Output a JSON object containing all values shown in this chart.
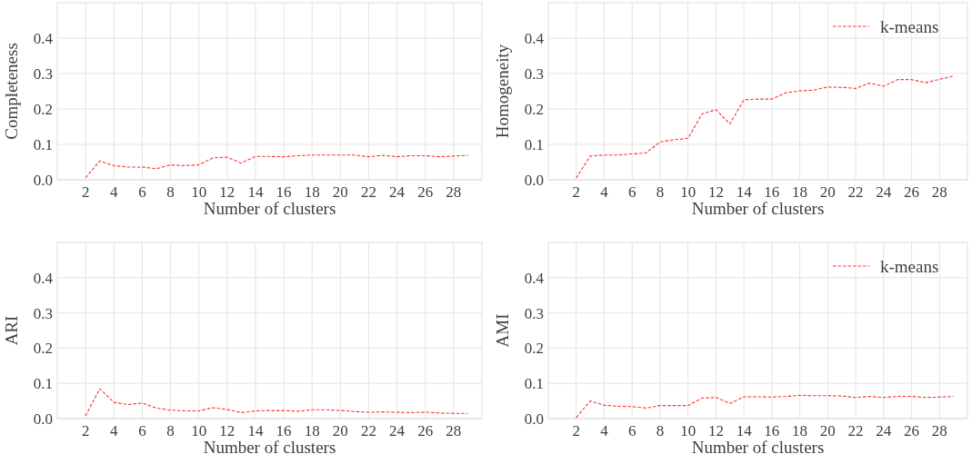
{
  "chart_data": [
    {
      "type": "line",
      "xlabel": "Number of clusters",
      "ylabel": "Completeness",
      "x": [
        2,
        3,
        4,
        5,
        6,
        7,
        8,
        9,
        10,
        11,
        12,
        13,
        14,
        15,
        16,
        17,
        18,
        19,
        20,
        21,
        22,
        23,
        24,
        25,
        26,
        27,
        28,
        29
      ],
      "xlim": [
        0,
        30
      ],
      "xticks": [
        2,
        4,
        6,
        8,
        10,
        12,
        14,
        16,
        18,
        20,
        22,
        24,
        26,
        28
      ],
      "ylim": [
        0,
        0.5
      ],
      "yticks": [
        {
          "value": 0,
          "label": "0.0"
        },
        {
          "value": 0.1,
          "label": "0.1"
        },
        {
          "value": 0.2,
          "label": "0.2"
        },
        {
          "value": 0.3,
          "label": "0.3"
        },
        {
          "value": 0.4,
          "label": "0.4"
        }
      ],
      "grid": true,
      "legend": false,
      "line_style": "dashed",
      "series": [
        {
          "color": "#ff3030",
          "values": [
            0.006,
            0.053,
            0.04,
            0.036,
            0.036,
            0.031,
            0.042,
            0.04,
            0.042,
            0.062,
            0.064,
            0.047,
            0.066,
            0.066,
            0.065,
            0.068,
            0.07,
            0.07,
            0.07,
            0.07,
            0.065,
            0.069,
            0.065,
            0.068,
            0.068,
            0.065,
            0.067,
            0.069
          ]
        }
      ]
    },
    {
      "type": "line",
      "xlabel": "Number of clusters",
      "ylabel": "Homogeneity",
      "x": [
        2,
        3,
        4,
        5,
        6,
        7,
        8,
        9,
        10,
        11,
        12,
        13,
        14,
        15,
        16,
        17,
        18,
        19,
        20,
        21,
        22,
        23,
        24,
        25,
        26,
        27,
        28,
        29
      ],
      "xlim": [
        0,
        30
      ],
      "xticks": [
        2,
        4,
        6,
        8,
        10,
        12,
        14,
        16,
        18,
        20,
        22,
        24,
        26,
        28
      ],
      "ylim": [
        0,
        0.5
      ],
      "yticks": [
        {
          "value": 0,
          "label": "0.0"
        },
        {
          "value": 0.1,
          "label": "0.1"
        },
        {
          "value": 0.2,
          "label": "0.2"
        },
        {
          "value": 0.3,
          "label": "0.3"
        },
        {
          "value": 0.4,
          "label": "0.4"
        }
      ],
      "grid": true,
      "legend": "top right",
      "line_style": "dashed",
      "series": [
        {
          "name": "k-means",
          "color": "#ff3030",
          "values": [
            0.005,
            0.067,
            0.07,
            0.07,
            0.073,
            0.076,
            0.107,
            0.113,
            0.117,
            0.186,
            0.198,
            0.158,
            0.226,
            0.228,
            0.228,
            0.246,
            0.251,
            0.253,
            0.262,
            0.261,
            0.258,
            0.273,
            0.264,
            0.283,
            0.283,
            0.274,
            0.284,
            0.293
          ]
        }
      ]
    },
    {
      "type": "line",
      "xlabel": "Number of clusters",
      "ylabel": "ARI",
      "x": [
        2,
        3,
        4,
        5,
        6,
        7,
        8,
        9,
        10,
        11,
        12,
        13,
        14,
        15,
        16,
        17,
        18,
        19,
        20,
        21,
        22,
        23,
        24,
        25,
        26,
        27,
        28,
        29
      ],
      "xlim": [
        0,
        30
      ],
      "xticks": [
        2,
        4,
        6,
        8,
        10,
        12,
        14,
        16,
        18,
        20,
        22,
        24,
        26,
        28
      ],
      "ylim": [
        0,
        0.5
      ],
      "yticks": [
        {
          "value": 0,
          "label": "0.0"
        },
        {
          "value": 0.1,
          "label": "0.1"
        },
        {
          "value": 0.2,
          "label": "0.2"
        },
        {
          "value": 0.3,
          "label": "0.3"
        },
        {
          "value": 0.4,
          "label": "0.4"
        }
      ],
      "grid": true,
      "legend": false,
      "line_style": "dashed",
      "series": [
        {
          "color": "#ff3030",
          "values": [
            0.008,
            0.085,
            0.046,
            0.04,
            0.044,
            0.03,
            0.024,
            0.022,
            0.022,
            0.031,
            0.026,
            0.017,
            0.022,
            0.023,
            0.023,
            0.021,
            0.025,
            0.025,
            0.023,
            0.02,
            0.018,
            0.019,
            0.018,
            0.017,
            0.018,
            0.016,
            0.015,
            0.015
          ]
        }
      ]
    },
    {
      "type": "line",
      "xlabel": "Number of clusters",
      "ylabel": "AMI",
      "x": [
        2,
        3,
        4,
        5,
        6,
        7,
        8,
        9,
        10,
        11,
        12,
        13,
        14,
        15,
        16,
        17,
        18,
        19,
        20,
        21,
        22,
        23,
        24,
        25,
        26,
        27,
        28,
        29
      ],
      "xlim": [
        0,
        30
      ],
      "xticks": [
        2,
        4,
        6,
        8,
        10,
        12,
        14,
        16,
        18,
        20,
        22,
        24,
        26,
        28
      ],
      "ylim": [
        0,
        0.5
      ],
      "yticks": [
        {
          "value": 0,
          "label": "0.0"
        },
        {
          "value": 0.1,
          "label": "0.1"
        },
        {
          "value": 0.2,
          "label": "0.2"
        },
        {
          "value": 0.3,
          "label": "0.3"
        },
        {
          "value": 0.4,
          "label": "0.4"
        }
      ],
      "grid": true,
      "legend": "top right",
      "line_style": "dashed",
      "series": [
        {
          "name": "k-means",
          "color": "#ff3030",
          "values": [
            0.003,
            0.05,
            0.038,
            0.035,
            0.034,
            0.03,
            0.037,
            0.037,
            0.037,
            0.058,
            0.06,
            0.043,
            0.062,
            0.062,
            0.061,
            0.063,
            0.066,
            0.065,
            0.065,
            0.064,
            0.06,
            0.063,
            0.06,
            0.063,
            0.063,
            0.06,
            0.061,
            0.063
          ]
        }
      ]
    }
  ]
}
